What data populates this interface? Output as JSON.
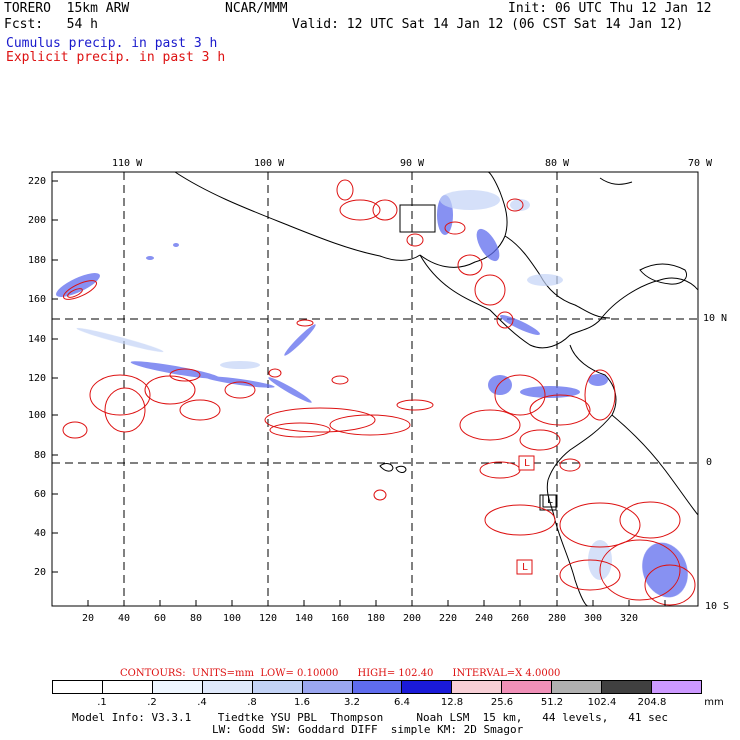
{
  "header": {
    "model": "TORERO  15km ARW",
    "org": "NCAR/MMM",
    "init": "Init: 06 UTC Thu 12 Jan 12",
    "fcst": "Fcst:   54 h",
    "valid": "Valid: 12 UTC Sat 14 Jan 12 (06 CST Sat 14 Jan 12)",
    "cumulus": "Cumulus precip. in past 3 h",
    "explicit": "Explicit precip. in past 3 h"
  },
  "axes": {
    "top_lon": [
      "110 W",
      "100 W",
      "90 W",
      "80 W",
      "70 W"
    ],
    "right_lat": [
      "10 N",
      "0",
      "10 S"
    ],
    "left_ticks": [
      "220",
      "200",
      "180",
      "160",
      "140",
      "120",
      "100",
      "80",
      "60",
      "40",
      "20"
    ],
    "bottom_ticks": [
      "20",
      "40",
      "60",
      "80",
      "100",
      "120",
      "140",
      "160",
      "180",
      "200",
      "220",
      "240",
      "260",
      "280",
      "300",
      "320"
    ]
  },
  "map_features": {
    "lows": [
      "L",
      "L",
      "L"
    ],
    "highs": []
  },
  "contours": {
    "label": "CONTOURS:",
    "units": "UNITS=mm",
    "low": "LOW= 0.10000",
    "high": "HIGH= 102.40",
    "interval": "INTERVAL=X 4.0000"
  },
  "colorbar": {
    "labels": [
      ".1",
      ".2",
      ".4",
      ".8",
      "1.6",
      "3.2",
      "6.4",
      "12.8",
      "25.6",
      "51.2",
      "102.4",
      "204.8"
    ],
    "unit": "mm",
    "colors": [
      "#ffffff",
      "#ffffff",
      "#eef6ff",
      "#dfe9fb",
      "#c3d3f6",
      "#9aa6f0",
      "#5f6cee",
      "#1a1ad8",
      "#f7cfd6",
      "#f090b8",
      "#b0b0b0",
      "#404040",
      "#cc99ff"
    ]
  },
  "footer": {
    "line1": "Model Info: V3.3.1    Tiedtke YSU PBL  Thompson     Noah LSM  15 km,   44 levels,   41 sec",
    "line2": "LW: Godd SW: Goddard DIFF  simple KM: 2D Smagor"
  }
}
